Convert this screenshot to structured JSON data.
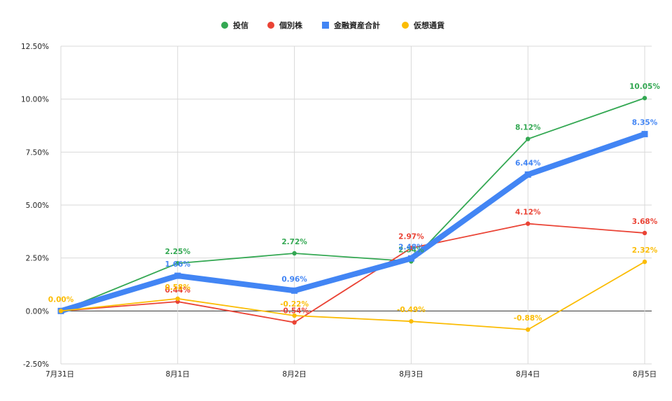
{
  "chart_data": {
    "type": "line",
    "title": "",
    "xlabel": "",
    "ylabel": "",
    "categories": [
      "7月31日",
      "8月1日",
      "8月2日",
      "8月3日",
      "8月4日",
      "8月5日"
    ],
    "ylim": [
      -2.5,
      12.5
    ],
    "yticks": [
      -2.5,
      0,
      2.5,
      5,
      7.5,
      10,
      12.5
    ],
    "ytick_labels": [
      "-2.50%",
      "0.00%",
      "2.50%",
      "5.00%",
      "7.50%",
      "10.00%",
      "12.50%"
    ],
    "grid": true,
    "legend_position": "top",
    "series": [
      {
        "name": "投信",
        "color": "#34a853",
        "marker": "circle",
        "emphasis": "normal",
        "values": [
          0,
          2.25,
          2.72,
          2.34,
          8.12,
          10.05
        ],
        "labels": [
          "",
          "2.25%",
          "2.72%",
          "2.34%",
          "8.12%",
          "10.05%"
        ]
      },
      {
        "name": "個別株",
        "color": "#ea4335",
        "marker": "circle",
        "emphasis": "normal",
        "values": [
          0,
          0.44,
          -0.54,
          2.97,
          4.12,
          3.68
        ],
        "labels": [
          "",
          "0.44%",
          "-0.54%",
          "2.97%",
          "4.12%",
          "3.68%"
        ]
      },
      {
        "name": "金融資産合計",
        "color": "#4285f4",
        "marker": "square",
        "emphasis": "bold",
        "values": [
          0,
          1.66,
          0.96,
          2.48,
          6.44,
          8.35
        ],
        "labels": [
          "",
          "1.66%",
          "0.96%",
          "2.48%",
          "6.44%",
          "8.35%"
        ]
      },
      {
        "name": "仮想通貨",
        "color": "#fbbc04",
        "marker": "circle",
        "emphasis": "normal",
        "values": [
          0,
          0.58,
          -0.22,
          -0.49,
          -0.88,
          2.32
        ],
        "labels": [
          "0.00%",
          "0.58%",
          "-0.22%",
          "-0.49%",
          "-0.88%",
          "2.32%"
        ]
      }
    ]
  }
}
